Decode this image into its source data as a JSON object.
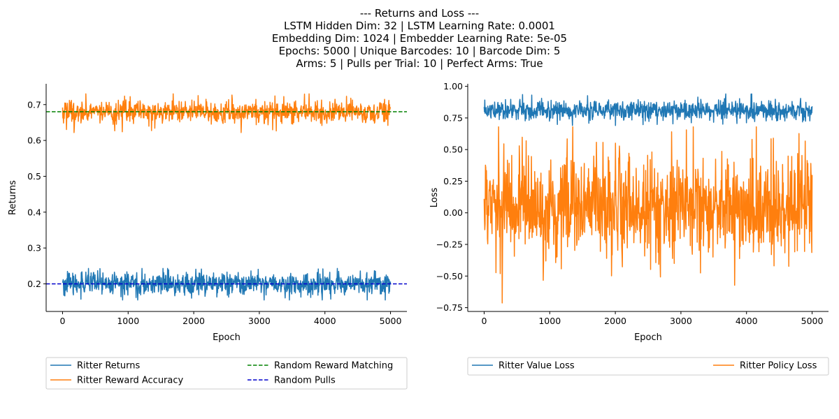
{
  "title": {
    "lines": [
      "--- Returns and Loss ---",
      "LSTM Hidden Dim: 32 | LSTM Learning Rate: 0.0001",
      "Embedding Dim: 1024 | Embedder Learning Rate: 5e-05",
      "Epochs: 5000 | Unique Barcodes: 10 | Barcode Dim: 5",
      "Arms: 5 | Pulls per Trial: 10 | Perfect Arms: True"
    ]
  },
  "chart_data": [
    {
      "type": "line",
      "xlabel": "Epoch",
      "ylabel": "Returns",
      "xlim": [
        -250,
        5250
      ],
      "ylim": [
        0.123,
        0.758
      ],
      "xticks": [
        0,
        1000,
        2000,
        3000,
        4000,
        5000
      ],
      "yticks": [
        0.2,
        0.3,
        0.4,
        0.5,
        0.6,
        0.7
      ],
      "ytick_labels": [
        "0.2",
        "0.3",
        "0.4",
        "0.5",
        "0.6",
        "0.7"
      ],
      "grid": false,
      "legend_placement": "below",
      "series": [
        {
          "name": "Ritter Returns",
          "color": "#1f77b4",
          "style": "solid",
          "x_range": [
            0,
            5000
          ],
          "points": 1000,
          "mean": 0.2,
          "noise": 0.015,
          "min": 0.155,
          "max": 0.243
        },
        {
          "name": "Ritter Reward Accuracy",
          "color": "#ff7f0e",
          "style": "solid",
          "x_range": [
            0,
            5000
          ],
          "points": 1000,
          "mean": 0.68,
          "noise": 0.015,
          "min": 0.622,
          "max": 0.73
        },
        {
          "name": "Random Reward Matching",
          "color": "#008000",
          "style": "dashed",
          "value": 0.68
        },
        {
          "name": "Random Pulls",
          "color": "#0000cc",
          "style": "dashed",
          "value": 0.2
        }
      ]
    },
    {
      "type": "line",
      "xlabel": "Epoch",
      "ylabel": "Loss",
      "xlim": [
        -250,
        5250
      ],
      "ylim": [
        -0.78,
        1.02
      ],
      "xticks": [
        0,
        1000,
        2000,
        3000,
        4000,
        5000
      ],
      "yticks": [
        -0.75,
        -0.5,
        -0.25,
        0.0,
        0.25,
        0.5,
        0.75,
        1.0
      ],
      "ytick_labels": [
        "−0.75",
        "−0.50",
        "−0.25",
        "0.00",
        "0.25",
        "0.50",
        "0.75",
        "1.00"
      ],
      "grid": false,
      "legend_placement": "below",
      "series": [
        {
          "name": "Ritter Value Loss",
          "color": "#1f77b4",
          "style": "solid",
          "x_range": [
            0,
            5000
          ],
          "points": 1000,
          "mean": 0.81,
          "noise": 0.035,
          "min": 0.69,
          "max": 0.94
        },
        {
          "name": "Ritter Policy Loss",
          "color": "#ff7f0e",
          "style": "solid",
          "x_range": [
            0,
            5000
          ],
          "points": 1000,
          "mean": 0.05,
          "noise": 0.2,
          "min": -0.72,
          "max": 0.68
        }
      ]
    }
  ]
}
